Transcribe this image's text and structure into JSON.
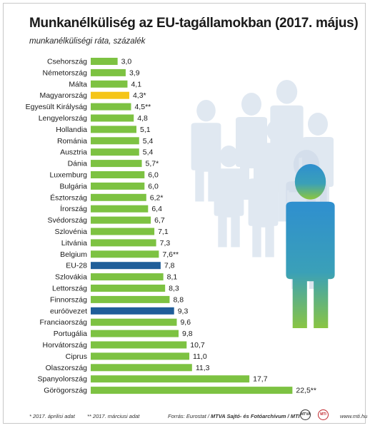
{
  "header": {
    "title": "Munkanélküliség az EU-tagállamokban (2017. május)",
    "subtitle": "munkanélküliségi ráta, százalék"
  },
  "footer": {
    "note1": "* 2017. áprilisi adat",
    "note2": "** 2017. márciusi adat",
    "source_prefix": "Forrás: Eurostat / ",
    "source_bold": "MTVA Sajtó- és Fotóarchívum / MTI",
    "logo1": "MTVA",
    "logo2": "MTI",
    "website": "www.mti.hu"
  },
  "colors": {
    "country": "#7dc242",
    "hungary": "#f5c518",
    "aggregate": "#1f5e99",
    "people_fg_top": "#2f8fcf",
    "people_fg_bottom": "#8cc63f",
    "people_bg": "#dde6f0"
  },
  "chart_data": {
    "type": "bar",
    "orientation": "horizontal",
    "categories": [
      "Csehország",
      "Németország",
      "Málta",
      "Magyarország",
      "Egyesült Királyság",
      "Lengyelország",
      "Hollandia",
      "Románia",
      "Ausztria",
      "Dánia",
      "Luxemburg",
      "Bulgária",
      "Észtország",
      "Írország",
      "Svédország",
      "Szlovénia",
      "Litvánia",
      "Belgium",
      "EU-28",
      "Szlovákia",
      "Lettország",
      "Finnország",
      "euróövezet",
      "Franciaország",
      "Portugália",
      "Horvátország",
      "Ciprus",
      "Olaszország",
      "Spanyolország",
      "Görögország"
    ],
    "values": [
      3.0,
      3.9,
      4.1,
      4.3,
      4.5,
      4.8,
      5.1,
      5.4,
      5.4,
      5.7,
      6.0,
      6.0,
      6.2,
      6.4,
      6.7,
      7.1,
      7.3,
      7.6,
      7.8,
      8.1,
      8.3,
      8.8,
      9.3,
      9.6,
      9.8,
      10.7,
      11.0,
      11.3,
      17.7,
      22.5
    ],
    "labels": [
      "3,0",
      "3,9",
      "4,1",
      "4,3*",
      "4,5**",
      "4,8",
      "5,1",
      "5,4",
      "5,4",
      "5,7*",
      "6,0",
      "6,0",
      "6,2*",
      "6,4",
      "6,7",
      "7,1",
      "7,3",
      "7,6**",
      "7,8",
      "8,1",
      "8,3",
      "8,8",
      "9,3",
      "9,6",
      "9,8",
      "10,7",
      "11,0",
      "11,3",
      "17,7",
      "22,5**"
    ],
    "highlight": [
      "country",
      "country",
      "country",
      "hungary",
      "country",
      "country",
      "country",
      "country",
      "country",
      "country",
      "country",
      "country",
      "country",
      "country",
      "country",
      "country",
      "country",
      "country",
      "aggregate",
      "country",
      "country",
      "country",
      "aggregate",
      "country",
      "country",
      "country",
      "country",
      "country",
      "country",
      "country"
    ],
    "xlim": [
      0,
      22.5
    ],
    "grid": false,
    "legend": "none"
  }
}
